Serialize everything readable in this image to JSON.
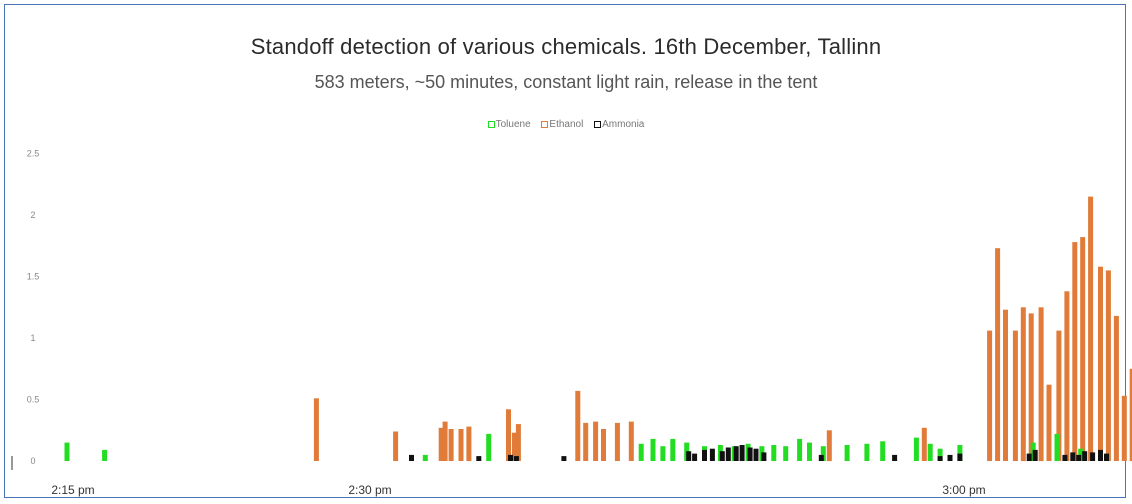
{
  "chart_data": {
    "type": "bar",
    "title": "Standoff detection of various chemicals. 16th December, Tallinn",
    "subtitle": "583 meters, ~50 minutes, constant light rain, release in the tent",
    "xlabel": "",
    "ylabel": "",
    "ylim": [
      0,
      2.5
    ],
    "xlim_minutes": [
      0,
      50
    ],
    "y_ticks": [
      "0",
      "0.5",
      "1",
      "1.5",
      "2",
      "2.5"
    ],
    "x_ticks": [
      {
        "label": "2:15 pm",
        "minute": 0
      },
      {
        "label": "2:30 pm",
        "minute": 15
      },
      {
        "label": "3:00 pm",
        "minute": 45
      }
    ],
    "legend_position": "top-center",
    "grid": false,
    "series": [
      {
        "name": "Toluene",
        "color": "#22dd22",
        "points": [
          {
            "minute": 0.2,
            "value": 0.15
          },
          {
            "minute": 2.1,
            "value": 0.09
          },
          {
            "minute": 18.3,
            "value": 0.05
          },
          {
            "minute": 21.5,
            "value": 0.22
          },
          {
            "minute": 29.2,
            "value": 0.14
          },
          {
            "minute": 29.8,
            "value": 0.18
          },
          {
            "minute": 30.3,
            "value": 0.12
          },
          {
            "minute": 30.8,
            "value": 0.18
          },
          {
            "minute": 31.5,
            "value": 0.15
          },
          {
            "minute": 32.4,
            "value": 0.12
          },
          {
            "minute": 33.2,
            "value": 0.13
          },
          {
            "minute": 33.9,
            "value": 0.12
          },
          {
            "minute": 34.6,
            "value": 0.14
          },
          {
            "minute": 35.3,
            "value": 0.12
          },
          {
            "minute": 35.9,
            "value": 0.13
          },
          {
            "minute": 36.5,
            "value": 0.12
          },
          {
            "minute": 37.2,
            "value": 0.18
          },
          {
            "minute": 37.7,
            "value": 0.15
          },
          {
            "minute": 38.4,
            "value": 0.12
          },
          {
            "minute": 39.6,
            "value": 0.13
          },
          {
            "minute": 40.6,
            "value": 0.14
          },
          {
            "minute": 41.4,
            "value": 0.16
          },
          {
            "minute": 43.1,
            "value": 0.19
          },
          {
            "minute": 43.8,
            "value": 0.14
          },
          {
            "minute": 44.3,
            "value": 0.1
          },
          {
            "minute": 45.3,
            "value": 0.13
          },
          {
            "minute": 49.0,
            "value": 0.15
          },
          {
            "minute": 50.2,
            "value": 0.22
          },
          {
            "minute": 51.4,
            "value": 0.1
          }
        ]
      },
      {
        "name": "Ethanol",
        "color": "#e07b39",
        "points": [
          {
            "minute": 12.8,
            "value": 0.51
          },
          {
            "minute": 16.8,
            "value": 0.24
          },
          {
            "minute": 19.1,
            "value": 0.27
          },
          {
            "minute": 19.3,
            "value": 0.32
          },
          {
            "minute": 19.6,
            "value": 0.26
          },
          {
            "minute": 20.1,
            "value": 0.26
          },
          {
            "minute": 20.5,
            "value": 0.28
          },
          {
            "minute": 22.5,
            "value": 0.42
          },
          {
            "minute": 22.8,
            "value": 0.23
          },
          {
            "minute": 23.0,
            "value": 0.3
          },
          {
            "minute": 26.0,
            "value": 0.57
          },
          {
            "minute": 26.4,
            "value": 0.31
          },
          {
            "minute": 26.9,
            "value": 0.32
          },
          {
            "minute": 27.3,
            "value": 0.26
          },
          {
            "minute": 28.0,
            "value": 0.31
          },
          {
            "minute": 28.7,
            "value": 0.32
          },
          {
            "minute": 38.7,
            "value": 0.25
          },
          {
            "minute": 43.5,
            "value": 0.27
          },
          {
            "minute": 46.8,
            "value": 1.06
          },
          {
            "minute": 47.2,
            "value": 1.73
          },
          {
            "minute": 47.6,
            "value": 1.23
          },
          {
            "minute": 48.1,
            "value": 1.06
          },
          {
            "minute": 48.5,
            "value": 1.25
          },
          {
            "minute": 48.9,
            "value": 1.2
          },
          {
            "minute": 49.4,
            "value": 1.25
          },
          {
            "minute": 49.8,
            "value": 0.62
          },
          {
            "minute": 50.3,
            "value": 1.06
          },
          {
            "minute": 50.7,
            "value": 1.38
          },
          {
            "minute": 51.1,
            "value": 1.78
          },
          {
            "minute": 51.5,
            "value": 1.82
          },
          {
            "minute": 51.9,
            "value": 2.15
          },
          {
            "minute": 52.4,
            "value": 1.58
          },
          {
            "minute": 52.8,
            "value": 1.55
          },
          {
            "minute": 53.2,
            "value": 1.18
          },
          {
            "minute": 53.6,
            "value": 0.53
          },
          {
            "minute": 54.0,
            "value": 0.75
          }
        ]
      },
      {
        "name": "Ammonia",
        "color": "#111111",
        "points": [
          {
            "minute": 17.6,
            "value": 0.05
          },
          {
            "minute": 21.0,
            "value": 0.04
          },
          {
            "minute": 22.6,
            "value": 0.05
          },
          {
            "minute": 22.9,
            "value": 0.04
          },
          {
            "minute": 25.3,
            "value": 0.04
          },
          {
            "minute": 31.6,
            "value": 0.08
          },
          {
            "minute": 31.9,
            "value": 0.06
          },
          {
            "minute": 32.4,
            "value": 0.09
          },
          {
            "minute": 32.8,
            "value": 0.1
          },
          {
            "minute": 33.3,
            "value": 0.08
          },
          {
            "minute": 33.6,
            "value": 0.11
          },
          {
            "minute": 34.0,
            "value": 0.12
          },
          {
            "minute": 34.3,
            "value": 0.13
          },
          {
            "minute": 34.7,
            "value": 0.11
          },
          {
            "minute": 35.0,
            "value": 0.1
          },
          {
            "minute": 35.4,
            "value": 0.07
          },
          {
            "minute": 38.3,
            "value": 0.05
          },
          {
            "minute": 42.0,
            "value": 0.05
          },
          {
            "minute": 44.3,
            "value": 0.04
          },
          {
            "minute": 44.8,
            "value": 0.05
          },
          {
            "minute": 45.3,
            "value": 0.06
          },
          {
            "minute": 48.8,
            "value": 0.06
          },
          {
            "minute": 49.1,
            "value": 0.09
          },
          {
            "minute": 50.6,
            "value": 0.05
          },
          {
            "minute": 51.0,
            "value": 0.07
          },
          {
            "minute": 51.3,
            "value": 0.05
          },
          {
            "minute": 51.6,
            "value": 0.08
          },
          {
            "minute": 52.0,
            "value": 0.07
          },
          {
            "minute": 52.4,
            "value": 0.09
          },
          {
            "minute": 52.7,
            "value": 0.06
          }
        ]
      }
    ]
  }
}
